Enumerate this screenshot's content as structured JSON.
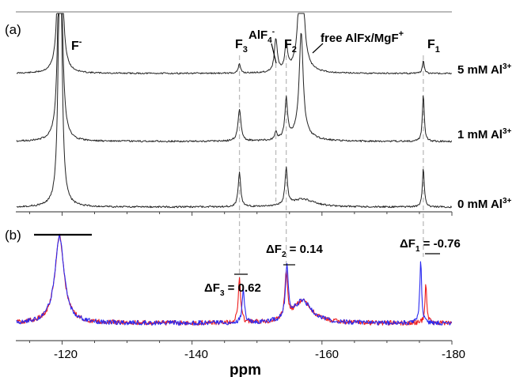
{
  "chart_data": [
    {
      "panel": "(a)",
      "type": "line",
      "xlim": [
        -113,
        -180
      ],
      "series": [
        {
          "name": "5 mM Al3+",
          "label_main": "5 mM Al",
          "label_sup": "3+"
        },
        {
          "name": "1 mM Al3+",
          "label_main": "1 mM Al",
          "label_sup": "3+"
        },
        {
          "name": "0 mM Al3+",
          "label_main": "0 mM Al",
          "label_sup": "3+"
        }
      ],
      "annotations": {
        "fluoride": {
          "main": "F",
          "sup": "-"
        },
        "f3": {
          "main": "F",
          "sub": "3"
        },
        "alf4": {
          "main": "AlF",
          "sub": "4",
          "sup": "-"
        },
        "f2": {
          "main": "F",
          "sub": "2"
        },
        "free": {
          "main": "free AlFx/MgF",
          "sup": "+"
        },
        "f1": {
          "main": "F",
          "sub": "1"
        }
      },
      "peaks_ppm": {
        "fluoride": -119.7,
        "f3": -147.3,
        "alf4": -152.9,
        "f2": -154.5,
        "free": -156.8,
        "f1": -175.6
      }
    },
    {
      "panel": "(b)",
      "type": "line",
      "xlabel": "ppm",
      "xlim": [
        -113,
        -180
      ],
      "xticks": [
        -120,
        -140,
        -160,
        -180
      ],
      "series_colors": {
        "blue": "#2a2af0",
        "red": "#ee1c1c"
      },
      "annotations": {
        "df3": {
          "prefix": "ΔF",
          "sub": "3",
          "value": " = 0.62"
        },
        "df2": {
          "prefix": "ΔF",
          "sub": "2",
          "value": " = 0.14"
        },
        "df1": {
          "prefix": "ΔF",
          "sub": "1",
          "value": " = -0.76"
        }
      },
      "peaks_ppm": {
        "blue": {
          "f3": -147.9,
          "f2": -154.6,
          "f1": -175.2
        },
        "red": {
          "f3": -147.3,
          "f2": -154.5,
          "f1": -176.0
        }
      }
    }
  ]
}
